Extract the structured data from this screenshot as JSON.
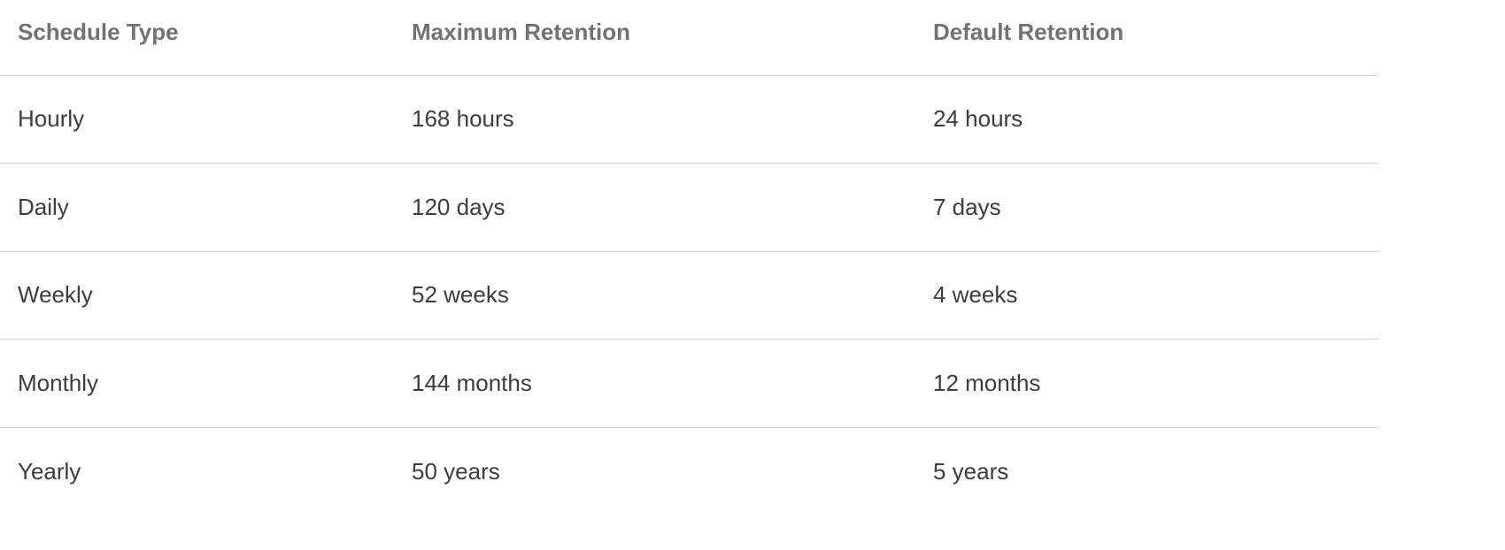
{
  "table": {
    "headers": [
      "Schedule Type",
      "Maximum Retention",
      "Default Retention"
    ],
    "rows": [
      [
        "Hourly",
        "168 hours",
        "24 hours"
      ],
      [
        "Daily",
        "120 days",
        "7 days"
      ],
      [
        "Weekly",
        "52 weeks",
        "4 weeks"
      ],
      [
        "Monthly",
        "144 months",
        "12 months"
      ],
      [
        "Yearly",
        "50 years",
        "5 years"
      ]
    ]
  }
}
